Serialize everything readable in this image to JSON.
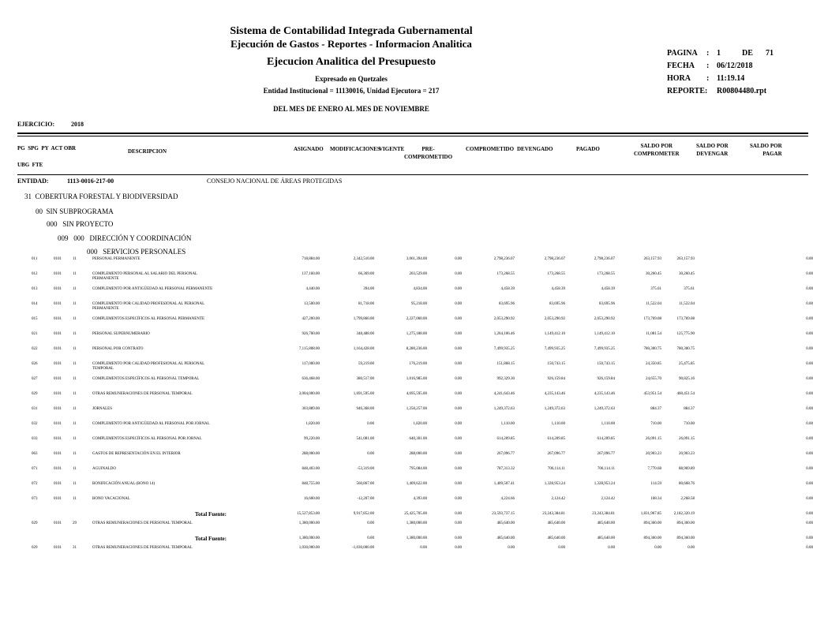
{
  "header": {
    "line1": "Sistema de Contabilidad Integrada Gubernamental",
    "line2": "Ejecución de Gastos - Reportes - Informacion Analitica",
    "line3": "Ejecucion Analitica del Presupuesto",
    "line4": "Expresado en Quetzales",
    "line5": "Entidad Institucional = 11130016, Unidad Ejecutora = 217",
    "period": "DEL MES DE ENERO AL MES DE NOVIEMBRE",
    "info": [
      [
        "PAGINA",
        ":",
        "1",
        "DE",
        "71"
      ],
      [
        "FECHA",
        ":",
        "06/12/2018"
      ],
      [
        "HORA",
        ":",
        "11:19.14"
      ],
      [
        "REPORTE:",
        "R00804480.rpt"
      ]
    ]
  },
  "ejercicio": {
    "label": "EJERCICIO:",
    "value": "2018"
  },
  "columns": {
    "codes1": "PG  SPG  PY  ACT OBR",
    "codes2": "UBG  FTE",
    "desc": "DESCRIPCION",
    "asignado": "ASIGNADO",
    "modificaciones": "MODIFICACIONES",
    "vigente": "VIGENTE",
    "precomprometido": "PRE-\nCOMPROMETIDO",
    "comprometido": "COMPROMETIDO",
    "devengado": "DEVENGADO",
    "pagado": "PAGADO",
    "saldo_comprometer": "SALDO POR\nCOMPROMETER",
    "saldo_devengar": "SALDO POR\nDEVENGAR",
    "saldo_pagar": "SALDO POR\nPAGAR"
  },
  "entidad": {
    "label": "ENTIDAD:",
    "code": "1113-0016-217-00",
    "name": "CONSEJO NACIONAL DE ÁREAS PROTEGIDAS"
  },
  "levels": [
    "31  COBERTURA FORESTAL Y BIODIVERSIDAD",
    "00  SIN SUBPROGRAMA",
    "000   SIN PROYECTO",
    "009   000   DIRECCIÓN Y COORDINACIÓN",
    "000   SERVICIOS PERSONALES"
  ],
  "rows": [
    [
      "011",
      "0101",
      "11",
      "PERSONAL PERMANENTE",
      "718,884.00",
      "2,342,510.00",
      "3,061,394.00",
      "0.00",
      "2,798,236.07",
      "2,798,236.07",
      "2,798,236.07",
      "263,157.93",
      "263,157.93",
      "0.00"
    ],
    [
      "012",
      "0101",
      "11",
      "COMPLEMENTO PERSONAL AL SALARIO DEL PERSONAL PERMANENTE",
      "137,160.00",
      "66,369.00",
      "203,529.00",
      "0.00",
      "173,268.55",
      "173,268.55",
      "173,268.55",
      "30,260.45",
      "30,260.45",
      "0.00"
    ],
    [
      "013",
      "0101",
      "11",
      "COMPLEMENTO POR ANTIGÜEDAD AL PERSONAL PERMANENTE",
      "4,440.00",
      "394.00",
      "4,834.00",
      "0.00",
      "4,458.39",
      "4,458.39",
      "4,458.39",
      "375.61",
      "375.61",
      "0.00"
    ],
    [
      "014",
      "0101",
      "11",
      "COMPLEMENTO POR CALIDAD PROFESIONAL AL PERSONAL PERMANENTE",
      "13,500.00",
      "81,718.00",
      "95,218.00",
      "0.00",
      "83,695.96",
      "83,695.96",
      "83,695.96",
      "11,522.04",
      "11,522.04",
      "0.00"
    ],
    [
      "015",
      "0101",
      "11",
      "COMPLEMENTOS ESPECÍFICOS AL PERSONAL PERMANENTE",
      "427,200.00",
      "1,799,860.00",
      "2,227,060.00",
      "0.00",
      "2,053,290.92",
      "2,053,290.92",
      "2,053,290.92",
      "173,769.08",
      "173,769.08",
      "0.00"
    ],
    [
      "021",
      "0101",
      "11",
      "PERSONAL SUPERNUMERARIO",
      "926,700.00",
      "348,488.00",
      "1,275,188.00",
      "0.00",
      "1,264,106.46",
      "1,149,412.10",
      "1,149,412.10",
      "11,081.54",
      "125,775.90",
      "0.00"
    ],
    [
      "022",
      "0101",
      "11",
      "PERSONAL POR CONTRATO",
      "7,115,808.00",
      "1,164,428.00",
      "8,280,236.00",
      "0.00",
      "7,499,935.25",
      "7,499,935.25",
      "7,499,935.25",
      "780,300.75",
      "780,300.75",
      "0.00"
    ],
    [
      "026",
      "0101",
      "11",
      "COMPLEMENTO POR CALIDAD PROFESIONAL AL PERSONAL TEMPORAL",
      "117,000.00",
      "59,219.00",
      "176,219.00",
      "0.00",
      "151,868.15",
      "150,743.15",
      "150,743.15",
      "24,350.85",
      "25,475.85",
      "0.00"
    ],
    [
      "027",
      "0101",
      "11",
      "COMPLEMENTOS ESPECÍFICOS AL PERSONAL TEMPORAL",
      "636,468.00",
      "380,517.00",
      "1,016,985.00",
      "0.00",
      "992,329.30",
      "926,159.84",
      "926,159.84",
      "24,655.70",
      "90,825.16",
      "0.00"
    ],
    [
      "029",
      "0101",
      "11",
      "OTRAS REMUNERACIONES DE PERSONAL TEMPORAL",
      "3,004,000.00",
      "1,691,595.00",
      "4,695,595.00",
      "0.00",
      "4,241,643.46",
      "4,235,143.46",
      "4,235,143.46",
      "453,951.54",
      "460,451.54",
      "0.00"
    ],
    [
      "031",
      "0101",
      "11",
      "JORNALES",
      "303,889.00",
      "946,368.00",
      "1,250,257.00",
      "0.00",
      "1,249,372.63",
      "1,249,372.63",
      "1,249,372.63",
      "884.37",
      "884.37",
      "0.00"
    ],
    [
      "032",
      "0101",
      "11",
      "COMPLEMENTO POR ANTIGÜEDAD AL PERSONAL POR JORNAL",
      "1,820.00",
      "0.00",
      "1,820.00",
      "0.00",
      "1,110.00",
      "1,110.00",
      "1,110.00",
      "710.00",
      "710.00",
      "0.00"
    ],
    [
      "033",
      "0101",
      "11",
      "COMPLEMENTOS ESPECÍFICOS AL PERSONAL POR JORNAL",
      "99,220.00",
      "541,081.00",
      "640,301.00",
      "0.00",
      "614,209.85",
      "614,209.85",
      "614,209.85",
      "26,091.15",
      "26,091.15",
      "0.00"
    ],
    [
      "063",
      "0101",
      "11",
      "GASTOS DE REPRESENTACIÓN EN EL INTERIOR",
      "288,000.00",
      "0.00",
      "288,000.00",
      "0.00",
      "267,096.77",
      "267,096.77",
      "267,096.77",
      "20,903.23",
      "20,903.23",
      "0.00"
    ],
    [
      "071",
      "0101",
      "11",
      "AGUINALDO",
      "848,403.00",
      "-53,319.00",
      "795,084.00",
      "0.00",
      "787,313.32",
      "706,114.11",
      "706,114.11",
      "7,770.68",
      "88,969.89",
      "0.00"
    ],
    [
      "072",
      "0101",
      "11",
      "BONIFICACIÓN ANUAL (BONO 14)",
      "848,755.00",
      "560,867.00",
      "1,409,622.00",
      "0.00",
      "1,409,507.41",
      "1,328,953.24",
      "1,328,953.24",
      "114.59",
      "80,668.76",
      "0.00"
    ],
    [
      "073",
      "0101",
      "11",
      "BONO VACACIONAL",
      "16,600.00",
      "-12,207.00",
      "4,393.00",
      "0.00",
      "4,224.66",
      "2,124.42",
      "2,124.42",
      "168.34",
      "2,268.58",
      "0.00"
    ],
    {
      "label": "Total Fuente:",
      "amounts": [
        "15,527,853.00",
        "9,917,852.00",
        "25,425,705.00",
        "0.00",
        "23,593,737.15",
        "23,243,384.81",
        "23,243,384.81",
        "1,831,967.85",
        "2,182,320.19",
        "0.00"
      ]
    },
    [
      "029",
      "0101",
      "29",
      "OTRAS REMUNERACIONES DE PERSONAL TEMPORAL",
      "1,380,000.00",
      "0.00",
      "1,380,000.00",
      "0.00",
      "485,640.00",
      "485,640.00",
      "485,640.00",
      "894,360.00",
      "894,360.00",
      "0.00"
    ],
    {
      "label": "Total Fuente:",
      "amounts": [
        "1,380,000.00",
        "0.00",
        "1,380,000.00",
        "0.00",
        "485,640.00",
        "485,640.00",
        "485,640.00",
        "894,360.00",
        "894,360.00",
        "0.00"
      ]
    },
    [
      "029",
      "0101",
      "31",
      "OTRAS REMUNERACIONES DE PERSONAL TEMPORAL",
      "1,030,000.00",
      "-1,030,000.00",
      "0.00",
      "0.00",
      "0.00",
      "0.00",
      "0.00",
      "0.00",
      "0.00",
      "0.00"
    ]
  ]
}
